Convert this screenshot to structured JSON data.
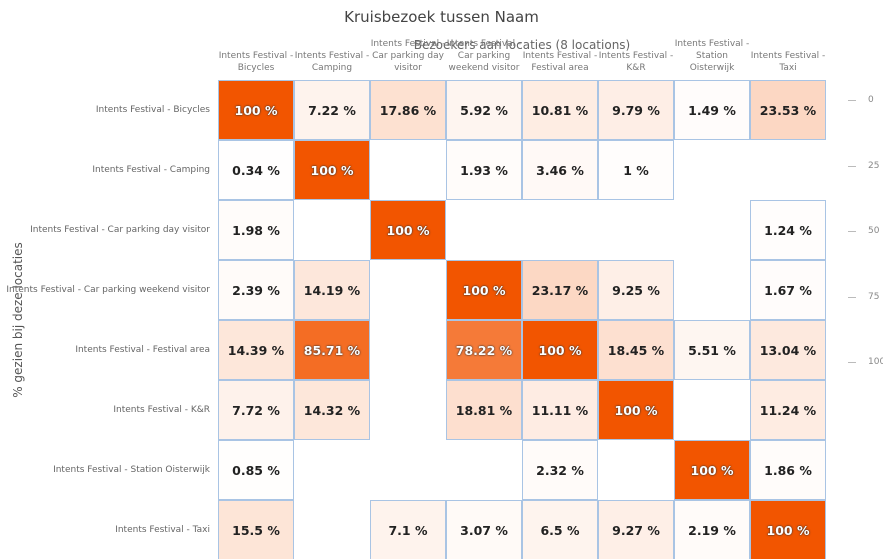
{
  "chart_data": {
    "type": "heatmap",
    "title": "Kruisbezoek tussen Naam",
    "x_label": "Bezoekers aan locaties (8 locations)",
    "y_label": "% gezien bij deze locaties",
    "x_categories": [
      "Intents Festival - Bicycles",
      "Intents Festival - Camping",
      "Intents Festival - Car parking day visitor",
      "Intents Festival - Car parking weekend visitor",
      "Intents Festival - Festival area",
      "Intents Festival - K&R",
      "Intents Festival - Station Oisterwijk",
      "Intents Festival - Taxi"
    ],
    "y_categories": [
      "Intents Festival - Bicycles",
      "Intents Festival - Camping",
      "Intents Festival - Car parking day visitor",
      "Intents Festival - Car parking weekend visitor",
      "Intents Festival - Festival area",
      "Intents Festival - K&R",
      "Intents Festival - Station Oisterwijk",
      "Intents Festival - Taxi"
    ],
    "values": [
      [
        100,
        7.22,
        17.86,
        5.92,
        10.81,
        9.79,
        1.49,
        23.53
      ],
      [
        0.34,
        100,
        null,
        1.93,
        3.46,
        1,
        null,
        null
      ],
      [
        1.98,
        null,
        100,
        null,
        null,
        null,
        null,
        1.24
      ],
      [
        2.39,
        14.19,
        null,
        100,
        23.17,
        9.25,
        null,
        1.67
      ],
      [
        14.39,
        85.71,
        null,
        78.22,
        100,
        18.45,
        5.51,
        13.04
      ],
      [
        7.72,
        14.32,
        null,
        18.81,
        11.11,
        100,
        null,
        11.24
      ],
      [
        0.85,
        null,
        null,
        null,
        2.32,
        null,
        100,
        1.86
      ],
      [
        15.5,
        null,
        7.1,
        3.07,
        6.5,
        9.27,
        2.19,
        100
      ]
    ],
    "value_labels": [
      [
        "100 %",
        "7.22 %",
        "17.86 %",
        "5.92 %",
        "10.81 %",
        "9.79 %",
        "1.49 %",
        "23.53 %"
      ],
      [
        "0.34 %",
        "100 %",
        null,
        "1.93 %",
        "3.46 %",
        "1 %",
        null,
        null
      ],
      [
        "1.98 %",
        null,
        "100 %",
        null,
        null,
        null,
        null,
        "1.24 %"
      ],
      [
        "2.39 %",
        "14.19 %",
        null,
        "100 %",
        "23.17 %",
        "9.25 %",
        null,
        "1.67 %"
      ],
      [
        "14.39 %",
        "85.71 %",
        null,
        "78.22 %",
        "100 %",
        "18.45 %",
        "5.51 %",
        "13.04 %"
      ],
      [
        "7.72 %",
        "14.32 %",
        null,
        "18.81 %",
        "11.11 %",
        "100 %",
        null,
        "11.24 %"
      ],
      [
        "0.85 %",
        null,
        null,
        null,
        "2.32 %",
        null,
        "100 %",
        "1.86 %"
      ],
      [
        "15.5 %",
        null,
        "7.1 %",
        "3.07 %",
        "6.5 %",
        "9.27 %",
        "2.19 %",
        "100 %"
      ]
    ],
    "colorscale": [
      "#ffffff",
      "#f25500"
    ],
    "clim": [
      0,
      100
    ],
    "cticks": [
      0,
      25,
      50,
      75,
      100
    ]
  }
}
